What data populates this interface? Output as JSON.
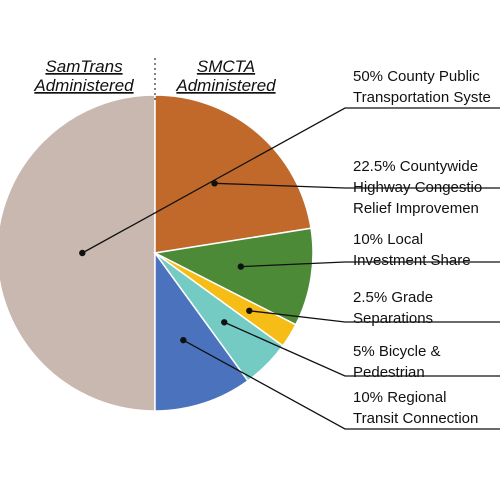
{
  "chart_data": {
    "type": "pie",
    "headers": {
      "left": [
        "SamTrans",
        "Administered"
      ],
      "right": [
        "SMCTA",
        "Administered"
      ]
    },
    "slices": [
      {
        "label_lines": [
          "50% County Public",
          "Transportation Syste"
        ],
        "value": 50,
        "color": "#c9b8b0"
      },
      {
        "label_lines": [
          "22.5% Countywide",
          "Highway Congestio",
          "Relief Improvemen"
        ],
        "value": 22.5,
        "color": "#c0692b"
      },
      {
        "label_lines": [
          "10% Local",
          "Investment Share"
        ],
        "value": 10,
        "color": "#4d8a38"
      },
      {
        "label_lines": [
          "2.5% Grade",
          "Separations"
        ],
        "value": 2.5,
        "color": "#f6bd16"
      },
      {
        "label_lines": [
          "5% Bicycle &",
          "Pedestrian"
        ],
        "value": 5,
        "color": "#73cbc4"
      },
      {
        "label_lines": [
          "10% Regional",
          "Transit Connection"
        ],
        "value": 10,
        "color": "#4a72bd"
      }
    ]
  }
}
